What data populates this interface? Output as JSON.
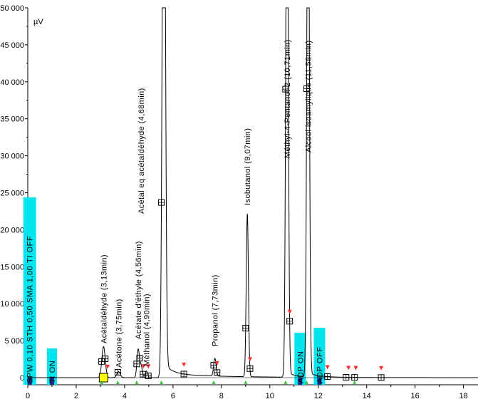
{
  "chart_data": {
    "type": "line",
    "title": "",
    "xlabel": "",
    "ylabel": "µV",
    "xlim": [
      0,
      18.6
    ],
    "ylim": [
      0,
      50000
    ],
    "x_ticks": [
      0,
      2,
      4,
      6,
      8,
      10,
      12,
      14,
      16,
      18
    ],
    "y_ticks": [
      0,
      5000,
      10000,
      15000,
      20000,
      25000,
      30000,
      35000,
      40000,
      45000,
      50000
    ],
    "y_tick_labels": [
      "0",
      "5 000",
      "10 000",
      "15 000",
      "20 000",
      "25 000",
      "30 000",
      "35 000",
      "40 000",
      "45 000",
      "50 000"
    ],
    "grid": false,
    "trace_color": "#000000",
    "peaks": [
      {
        "label": "Acétaldéhyde (3,13min)",
        "rt": 3.13,
        "height": 4200,
        "width": 0.07
      },
      {
        "label": "Acétone (3,75min)",
        "rt": 3.75,
        "height": 800,
        "width": 0.07
      },
      {
        "label": "Acétate d'éthyle (4,56min)",
        "rt": 4.56,
        "height": 3800,
        "width": 0.05
      },
      {
        "label": "Acétal eq acétaldéhyde (4,68min)",
        "rt": 4.68,
        "height": 1600,
        "width": 0.05
      },
      {
        "label": "Méthanol (4,90min)",
        "rt": 4.9,
        "height": 900,
        "width": 0.05
      },
      {
        "label": "",
        "rt": 5.62,
        "height": 95000,
        "width": 0.06
      },
      {
        "label": "Propanol (7,73min)",
        "rt": 7.73,
        "height": 2400,
        "width": 0.05
      },
      {
        "label": "Isobutanol (9,07min)",
        "rt": 9.07,
        "height": 22000,
        "width": 0.045
      },
      {
        "label": "Méthyl-4-Pentanol-2 (10,71min)",
        "rt": 10.71,
        "height": 80000,
        "width": 0.05
      },
      {
        "label": "Alcool isoamylique (11,58min)",
        "rt": 11.58,
        "height": 80000,
        "width": 0.05
      }
    ],
    "events": [
      {
        "label": "SPW 0,10 STH 0,50 SMA 1,00 TI OFF",
        "time": 0.08,
        "color": "#00e5ee"
      },
      {
        "label": "TI ON",
        "time": 1.0,
        "color": "#00e5ee"
      },
      {
        "label": "ADP ON",
        "time": 11.25,
        "color": "#00e5ee"
      },
      {
        "label": "ADP OFF",
        "time": 12.05,
        "color": "#00e5ee"
      }
    ],
    "integration_marks": [
      3.05,
      3.2,
      3.72,
      4.5,
      4.62,
      4.76,
      4.98,
      5.52,
      6.45,
      7.68,
      7.82,
      9.0,
      9.18,
      10.65,
      10.82,
      11.52,
      12.38,
      13.15,
      13.5,
      14.6
    ],
    "highlight_mark": 3.13,
    "highlight_color": "#ffff00",
    "marker_color_down": "#ff3030",
    "marker_color_up": "#33cc33",
    "event_bar_color": "#1a2a8c"
  }
}
